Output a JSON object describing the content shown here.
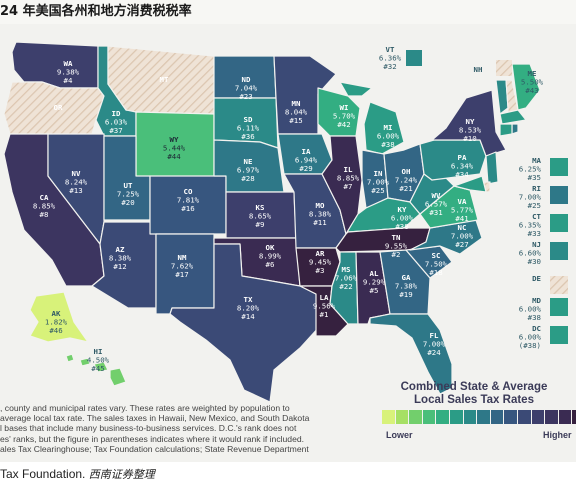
{
  "title": "24 年美国各州和地方消费税税率",
  "colors": {
    "scale": [
      "#d8f27a",
      "#a6e064",
      "#72cf6c",
      "#4abf7a",
      "#33ae82",
      "#2b9c86",
      "#2b8a88",
      "#2e7888",
      "#336685",
      "#37567f",
      "#3b4a76",
      "#3d3f6c",
      "#3c3560",
      "#3a2b52",
      "#36213f"
    ],
    "hatch": "#ead9c8",
    "land_text_light": "#ffffff",
    "land_text_dark": "#1d2b36"
  },
  "legend": {
    "title_line1": "Combined State & Average",
    "title_line2": "Local Sales Tax Rates",
    "low": "Lower",
    "high": "Higher"
  },
  "states": [
    {
      "abbr": "WA",
      "rate": "9.38%",
      "rank": "#4",
      "level": 11
    },
    {
      "abbr": "OR",
      "rate": "",
      "rank": "",
      "level": -1
    },
    {
      "abbr": "CA",
      "rate": "8.85%",
      "rank": "#8",
      "level": 12
    },
    {
      "abbr": "ID",
      "rate": "6.03%",
      "rank": "#37",
      "level": 6
    },
    {
      "abbr": "NV",
      "rate": "8.24%",
      "rank": "#13",
      "level": 10
    },
    {
      "abbr": "MT",
      "rate": "",
      "rank": "",
      "level": -1
    },
    {
      "abbr": "WY",
      "rate": "5.44%",
      "rank": "#44",
      "level": 3
    },
    {
      "abbr": "UT",
      "rate": "7.25%",
      "rank": "#20",
      "level": 8
    },
    {
      "abbr": "AZ",
      "rate": "8.38%",
      "rank": "#12",
      "level": 10
    },
    {
      "abbr": "CO",
      "rate": "7.81%",
      "rank": "#16",
      "level": 9
    },
    {
      "abbr": "NM",
      "rate": "7.62%",
      "rank": "#17",
      "level": 9
    },
    {
      "abbr": "ND",
      "rate": "7.04%",
      "rank": "#23",
      "level": 8
    },
    {
      "abbr": "SD",
      "rate": "6.11%",
      "rank": "#36",
      "level": 6
    },
    {
      "abbr": "NE",
      "rate": "6.97%",
      "rank": "#28",
      "level": 7
    },
    {
      "abbr": "KS",
      "rate": "8.65%",
      "rank": "#9",
      "level": 11
    },
    {
      "abbr": "OK",
      "rate": "8.99%",
      "rank": "#6",
      "level": 13
    },
    {
      "abbr": "TX",
      "rate": "8.20%",
      "rank": "#14",
      "level": 10
    },
    {
      "abbr": "MN",
      "rate": "8.04%",
      "rank": "#15",
      "level": 10
    },
    {
      "abbr": "IA",
      "rate": "6.94%",
      "rank": "#29",
      "level": 7
    },
    {
      "abbr": "MO",
      "rate": "8.38%",
      "rank": "#11",
      "level": 10
    },
    {
      "abbr": "AR",
      "rate": "9.45%",
      "rank": "#3",
      "level": 14
    },
    {
      "abbr": "LA",
      "rate": "9.56%",
      "rank": "#1",
      "level": 14
    },
    {
      "abbr": "WI",
      "rate": "5.70%",
      "rank": "#42",
      "level": 4
    },
    {
      "abbr": "IL",
      "rate": "8.85%",
      "rank": "#7",
      "level": 13
    },
    {
      "abbr": "MI",
      "rate": "6.00%",
      "rank": "#38",
      "level": 5
    },
    {
      "abbr": "IN",
      "rate": "7.00%",
      "rank": "#25",
      "level": 8
    },
    {
      "abbr": "OH",
      "rate": "7.24%",
      "rank": "#21",
      "level": 8
    },
    {
      "abbr": "KY",
      "rate": "6.00%",
      "rank": "#38",
      "level": 5
    },
    {
      "abbr": "TN",
      "rate": "9.55%",
      "rank": "#2",
      "level": 14
    },
    {
      "abbr": "MS",
      "rate": "7.06%",
      "rank": "#22",
      "level": 6
    },
    {
      "abbr": "AL",
      "rate": "9.29%",
      "rank": "#5",
      "level": 13
    },
    {
      "abbr": "GA",
      "rate": "7.38%",
      "rank": "#19",
      "level": 8
    },
    {
      "abbr": "FL",
      "rate": "7.00%",
      "rank": "#24",
      "level": 7
    },
    {
      "abbr": "SC",
      "rate": "7.50%",
      "rank": "#18",
      "level": 8
    },
    {
      "abbr": "NC",
      "rate": "7.00%",
      "rank": "#27",
      "level": 7
    },
    {
      "abbr": "VA",
      "rate": "5.77%",
      "rank": "#41",
      "level": 4
    },
    {
      "abbr": "WV",
      "rate": "6.57%",
      "rank": "#31",
      "level": 6
    },
    {
      "abbr": "PA",
      "rate": "6.34%",
      "rank": "#34",
      "level": 6
    },
    {
      "abbr": "NY",
      "rate": "8.53%",
      "rank": "#10",
      "level": 11
    },
    {
      "abbr": "VT",
      "rate": "6.36%",
      "rank": "#32",
      "level": 6
    },
    {
      "abbr": "NH",
      "rate": "",
      "rank": "",
      "level": -1
    },
    {
      "abbr": "ME",
      "rate": "5.50%",
      "rank": "#43",
      "level": 4
    },
    {
      "abbr": "AK",
      "rate": "1.82%",
      "rank": "#46",
      "level": 0
    },
    {
      "abbr": "HI",
      "rate": "4.50%",
      "rank": "#45",
      "level": 2
    }
  ],
  "ne_boxes": [
    {
      "abbr": "MA",
      "rate": "6.25%",
      "rank": "#35",
      "level": 5
    },
    {
      "abbr": "RI",
      "rate": "7.00%",
      "rank": "#25",
      "level": 7
    },
    {
      "abbr": "CT",
      "rate": "6.35%",
      "rank": "#33",
      "level": 5
    },
    {
      "abbr": "NJ",
      "rate": "6.60%",
      "rank": "#30",
      "level": 6
    },
    {
      "abbr": "DE",
      "rate": "",
      "rank": "",
      "level": -1
    },
    {
      "abbr": "MD",
      "rate": "6.00%",
      "rank": "#38",
      "level": 5
    },
    {
      "abbr": "DC",
      "rate": "6.00%",
      "rank": "(#38)",
      "level": 5
    }
  ],
  "notes": [
    ", county and municipal rates vary. These rates are weighted by population to",
    "average local tax rate. The sales taxes in Hawaii, New Mexico, and South Dakota",
    "l bases that include many business-to-business services. D.C.'s rank does not",
    "es' ranks, but the figure in parentheses indicates where it would rank if included.",
    "ales Tax Clearinghouse; Tax Foundation calculations; State Revenue Department"
  ],
  "source": {
    "text": "Tax Foundation.",
    "cn": "西南证券整理"
  }
}
